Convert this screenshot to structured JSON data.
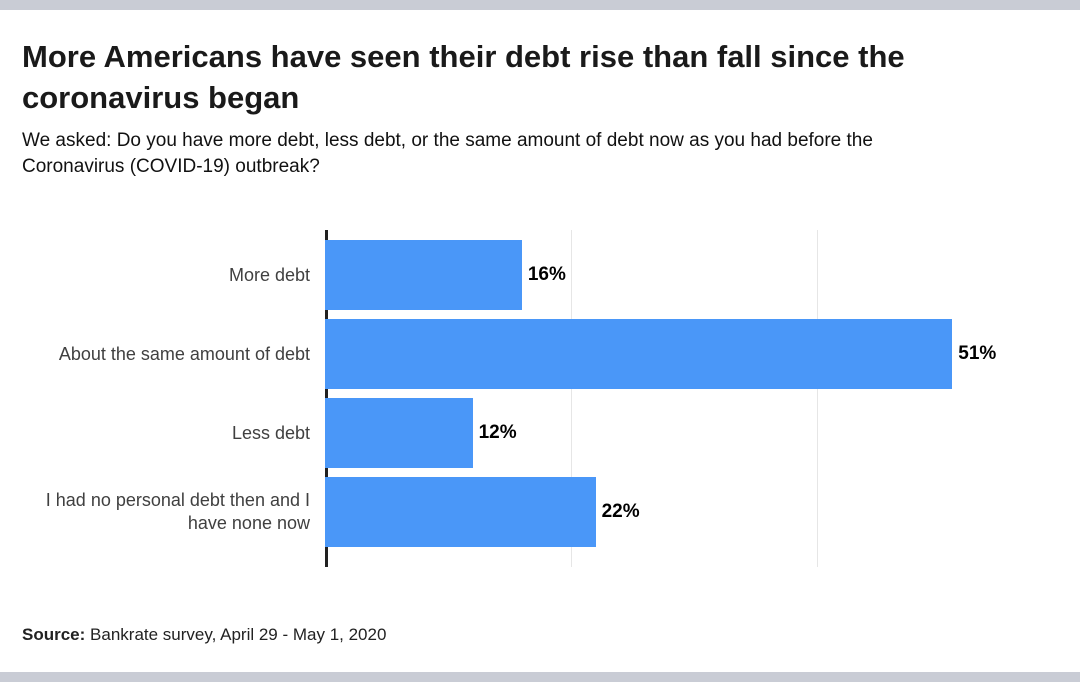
{
  "colors": {
    "edge_strip": "#c9ccd5",
    "bar": "#4a97f8",
    "axis": "#212121",
    "gridline": "#e6e6e6",
    "title_text": "#1a1a1a",
    "category_text": "#404040",
    "value_text": "#000000"
  },
  "header": {
    "title": "More Americans have seen their debt rise than fall since the coronavirus began",
    "subtitle": "We asked: Do you have more debt, less debt, or the same amount of debt now as you had before the Coronavirus (COVID-19) outbreak?"
  },
  "chart_data": {
    "type": "bar",
    "orientation": "horizontal",
    "categories": [
      "More debt",
      "About the same amount of debt",
      "Less debt",
      "I had no personal debt then and I have none now"
    ],
    "values": [
      16,
      51,
      12,
      22
    ],
    "value_labels": [
      "16%",
      "51%",
      "12%",
      "22%"
    ],
    "xlim": [
      0,
      60
    ],
    "gridlines_at": [
      20,
      40
    ],
    "grid": "vertical-only",
    "legend": "none",
    "bar_color": "#4a97f8",
    "axis_color": "#212121",
    "gridline_color": "#e6e6e6"
  },
  "footer": {
    "source_label": "Source:",
    "source_text": "Bankrate survey, April 29 - May 1, 2020"
  }
}
